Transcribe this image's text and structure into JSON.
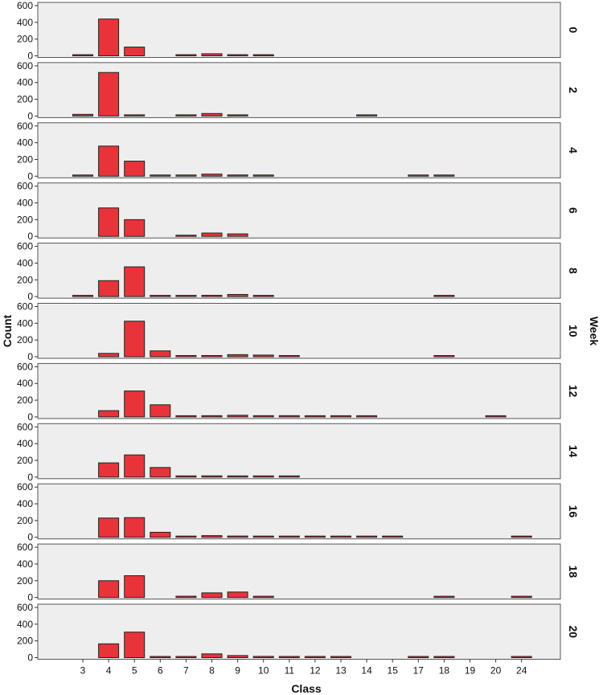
{
  "chart_data": {
    "type": "bar",
    "xlabel": "Class",
    "ylabel": "Count",
    "facet_label": "Week",
    "ylim": [
      0,
      600
    ],
    "yticks": [
      0,
      200,
      400,
      600
    ],
    "categories": [
      "3",
      "4",
      "5",
      "6",
      "7",
      "8",
      "9",
      "10",
      "11",
      "12",
      "13",
      "14",
      "15",
      "17",
      "18",
      "19",
      "20",
      "24"
    ],
    "bar_color": "#e8333a",
    "panel_background": "#eeeeee",
    "panels": [
      {
        "week": "0",
        "values": [
          5,
          440,
          105,
          0,
          8,
          25,
          12,
          5,
          0,
          0,
          0,
          0,
          0,
          0,
          0,
          0,
          0,
          0
        ]
      },
      {
        "week": "2",
        "values": [
          20,
          520,
          10,
          0,
          8,
          30,
          3,
          0,
          0,
          0,
          0,
          2,
          0,
          0,
          0,
          0,
          0,
          0
        ]
      },
      {
        "week": "4",
        "values": [
          5,
          360,
          180,
          5,
          12,
          25,
          15,
          5,
          0,
          0,
          0,
          0,
          0,
          3,
          3,
          0,
          0,
          0
        ]
      },
      {
        "week": "6",
        "values": [
          0,
          340,
          200,
          0,
          5,
          40,
          30,
          0,
          0,
          0,
          0,
          0,
          0,
          0,
          0,
          0,
          0,
          0
        ]
      },
      {
        "week": "8",
        "values": [
          5,
          190,
          355,
          5,
          8,
          15,
          25,
          5,
          0,
          0,
          0,
          0,
          0,
          0,
          5,
          0,
          0,
          0
        ]
      },
      {
        "week": "10",
        "values": [
          0,
          40,
          425,
          70,
          5,
          10,
          25,
          20,
          10,
          0,
          0,
          0,
          0,
          0,
          3,
          0,
          0,
          0
        ]
      },
      {
        "week": "12",
        "values": [
          0,
          75,
          310,
          145,
          8,
          15,
          20,
          15,
          15,
          5,
          5,
          5,
          0,
          0,
          0,
          0,
          5,
          0
        ]
      },
      {
        "week": "14",
        "values": [
          0,
          170,
          265,
          115,
          8,
          15,
          10,
          10,
          8,
          0,
          0,
          0,
          0,
          0,
          0,
          0,
          0,
          0
        ]
      },
      {
        "week": "16",
        "values": [
          0,
          230,
          235,
          60,
          8,
          20,
          15,
          10,
          5,
          5,
          5,
          5,
          5,
          0,
          0,
          0,
          0,
          5
        ]
      },
      {
        "week": "18",
        "values": [
          0,
          200,
          260,
          0,
          15,
          55,
          65,
          3,
          0,
          0,
          0,
          0,
          0,
          0,
          10,
          0,
          0,
          3
        ]
      },
      {
        "week": "20",
        "values": [
          0,
          165,
          305,
          10,
          8,
          45,
          25,
          15,
          5,
          5,
          5,
          0,
          0,
          5,
          5,
          0,
          0,
          5
        ]
      }
    ]
  }
}
